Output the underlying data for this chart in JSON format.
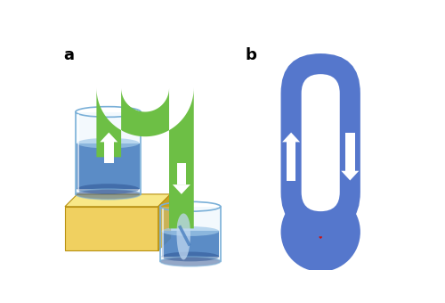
{
  "fig_width": 5.0,
  "fig_height": 3.4,
  "dpi": 100,
  "label_a": "a",
  "label_b": "b",
  "bg_color": "#ffffff",
  "green_tube": "#6dbf45",
  "blue_water": "#4a80c0",
  "blue_water_light": "#a0c8e8",
  "blue_water_dark": "#2a5090",
  "blue_circuit": "#5577cc",
  "red_heart": "#cc1111",
  "gold_front": "#f0d060",
  "gold_top": "#f8e888",
  "gold_right": "#c8a020",
  "glass_edge": "#7ab0d8",
  "glass_fill_light": "#d0e8f8",
  "splash_color": "#c0d8f0"
}
